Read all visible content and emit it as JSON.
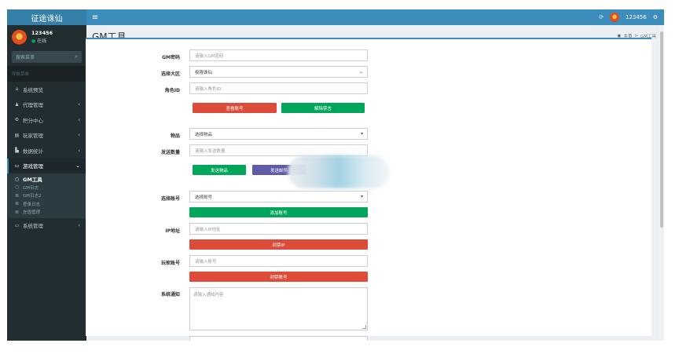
{
  "app": {
    "title": "征途诛仙",
    "menu_toggle": "≡"
  },
  "header": {
    "refresh_icon": "refresh-icon",
    "username": "123456",
    "settings_icon": "gears-icon"
  },
  "user": {
    "name": "123456",
    "status": "在线"
  },
  "sidebar": {
    "search_placeholder": "搜索菜单",
    "section_header": "导航菜单",
    "items": [
      {
        "label": "系统预览",
        "icon": "home-icon"
      },
      {
        "label": "代理管理",
        "icon": "users-icon"
      },
      {
        "label": "积分中心",
        "icon": "cogs-icon"
      },
      {
        "label": "玩家管理",
        "icon": "book-icon"
      },
      {
        "label": "数据统计",
        "icon": "bar-chart-icon"
      },
      {
        "label": "游戏管理",
        "icon": "laptop-icon"
      },
      {
        "label": "系统管理",
        "icon": "desktop-icon"
      }
    ],
    "submenu": [
      {
        "label": "GM工具"
      },
      {
        "label": "GM日志"
      },
      {
        "label": "GM日志2"
      },
      {
        "label": "登录日志"
      },
      {
        "label": "充值管理"
      }
    ]
  },
  "page": {
    "title": "GM工具",
    "breadcrumb": {
      "home": "主页",
      "sep": ">",
      "current": "GM工具"
    }
  },
  "form": {
    "gm_password": {
      "label": "GM密码",
      "placeholder": "请输入GM密码"
    },
    "server": {
      "label": "选择大区",
      "value": "极限诛仙"
    },
    "role_id": {
      "label": "角色ID",
      "placeholder": "请输入角色ID"
    },
    "btn_query": "查看账号",
    "btn_unban": "解除禁言",
    "item": {
      "label": "物品",
      "value": "选择物品"
    },
    "send_count": {
      "label": "发送数量",
      "placeholder": "请输入发送数量"
    },
    "btn_send_item": "发送物品",
    "btn_send_mail": "发送邮件",
    "account": {
      "label": "选择账号",
      "value": "选择账号"
    },
    "btn_add_account": "添加账号",
    "ip_address": {
      "label": "IP地址",
      "placeholder": "请输入IP地址"
    },
    "btn_ban_ip": "封禁IP",
    "player_account": {
      "label": "玩家账号",
      "placeholder": "请输入账号"
    },
    "btn_ban_account": "封禁账号",
    "notice": {
      "label": "系统通知",
      "placeholder": "请输入通知内容"
    }
  }
}
